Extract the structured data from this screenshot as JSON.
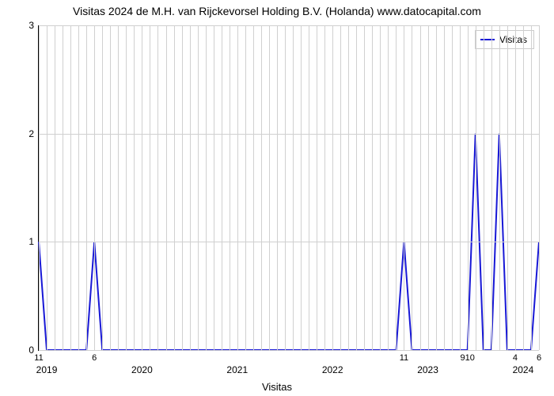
{
  "chart": {
    "type": "line",
    "title": "Visitas 2024 de M.H. van Rijckevorsel Holding B.V. (Holanda) www.datocapital.com",
    "xlabel": "Visitas",
    "legend_label": "Visitas",
    "background_color": "#ffffff",
    "grid_color": "#d0d0d0",
    "series_color": "#1818d6",
    "line_width": 2,
    "y": {
      "min": 0,
      "max": 3,
      "ticks": [
        0,
        1,
        2,
        3
      ]
    },
    "x_years": [
      "2019",
      "2020",
      "2021",
      "2022",
      "2023",
      "2024"
    ],
    "n_points": 64,
    "values": [
      1,
      0,
      0,
      0,
      0,
      0,
      0,
      1,
      0,
      0,
      0,
      0,
      0,
      0,
      0,
      0,
      0,
      0,
      0,
      0,
      0,
      0,
      0,
      0,
      0,
      0,
      0,
      0,
      0,
      0,
      0,
      0,
      0,
      0,
      0,
      0,
      0,
      0,
      0,
      0,
      0,
      0,
      0,
      0,
      0,
      0,
      1,
      0,
      0,
      0,
      0,
      0,
      0,
      0,
      0,
      2,
      0,
      0,
      2,
      0,
      0,
      0,
      0,
      1
    ],
    "data_labels": [
      {
        "x_index": 0,
        "text": "11"
      },
      {
        "x_index": 7,
        "text": "6"
      },
      {
        "x_index": 46,
        "text": "11"
      },
      {
        "x_index": 54,
        "text": "910"
      },
      {
        "x_index": 60,
        "text": "4"
      },
      {
        "x_index": 63,
        "text": "6"
      }
    ],
    "year_positions": [
      {
        "year_idx": 0,
        "x_index": 1
      },
      {
        "year_idx": 1,
        "x_index": 13
      },
      {
        "year_idx": 2,
        "x_index": 25
      },
      {
        "year_idx": 3,
        "x_index": 37
      },
      {
        "year_idx": 4,
        "x_index": 49
      },
      {
        "year_idx": 5,
        "x_index": 61
      }
    ],
    "minor_grid_step": 1,
    "title_fontsize": 14,
    "label_fontsize": 12
  }
}
